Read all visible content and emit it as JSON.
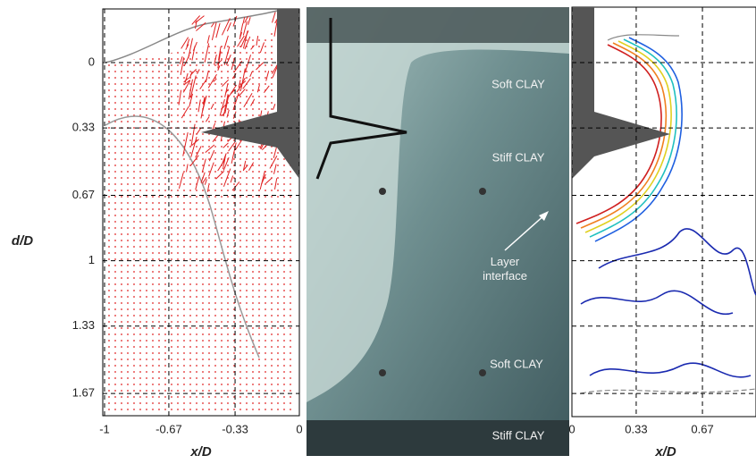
{
  "left_panel": {
    "xticks": [
      -1,
      -0.67,
      -0.33,
      0
    ],
    "yticks": [
      0,
      0.33,
      0.67,
      1,
      1.33,
      1.67
    ],
    "xlabel": "x/D",
    "ylabel": "d/D"
  },
  "photo": {
    "labels": [
      "Soft CLAY",
      "Stiff CLAY",
      "Layer interface",
      "Soft CLAY",
      "Stiff CLAY"
    ]
  },
  "right_panel": {
    "xticks": [
      0,
      0.33,
      0.67
    ],
    "xlabel": "x/D"
  }
}
